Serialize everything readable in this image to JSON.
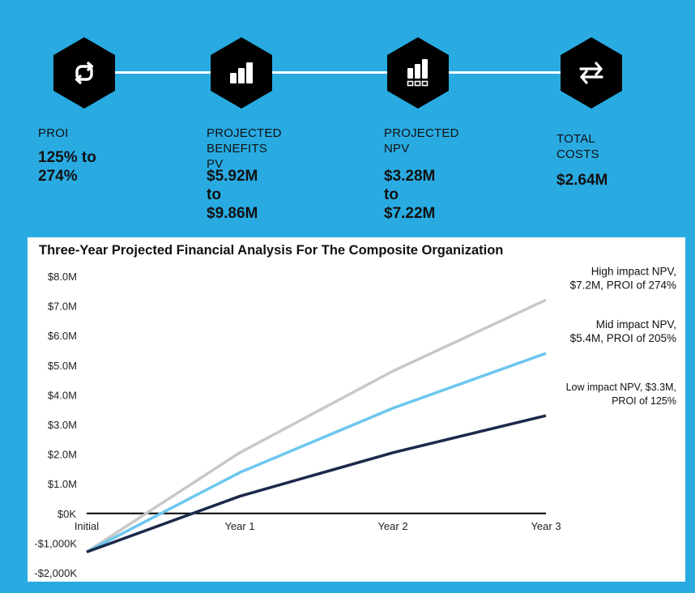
{
  "metrics": [
    {
      "label_lines": [
        "PROI"
      ],
      "value_lines": [
        "125% to",
        "274%"
      ],
      "icon": "refresh-icon"
    },
    {
      "label_lines": [
        "PROJECTED",
        "BENEFITS PV"
      ],
      "value_lines": [
        "$5.92M to",
        "$9.86M"
      ],
      "icon": "bar-chart-icon"
    },
    {
      "label_lines": [
        "PROJECTED",
        "NPV"
      ],
      "value_lines": [
        "$3.28M to",
        "$7.22M"
      ],
      "icon": "bar-chart-squares-icon"
    },
    {
      "label_lines": [
        "TOTAL",
        "COSTS"
      ],
      "value_lines": [
        "$2.64M"
      ],
      "icon": "swap-arrows-icon"
    }
  ],
  "colors": {
    "background": "#29abe2",
    "hexagon": "#000000",
    "high": "#c8c8c8",
    "mid": "#6cc6ee",
    "low": "#1b2a4a",
    "zero_line": "#000000"
  },
  "chart_data": {
    "type": "line",
    "title": "Three-Year Projected Financial Analysis For The Composite Organization",
    "x": [
      "Initial",
      "Year 1",
      "Year 2",
      "Year 3"
    ],
    "ylim": [
      -2000000,
      8000000
    ],
    "yticks": [
      {
        "value": 8000000,
        "label": "$8.0M"
      },
      {
        "value": 7000000,
        "label": "$7.0M"
      },
      {
        "value": 6000000,
        "label": "$6.0M"
      },
      {
        "value": 5000000,
        "label": "$5.0M"
      },
      {
        "value": 4000000,
        "label": "$4.0M"
      },
      {
        "value": 3000000,
        "label": "$3.0M"
      },
      {
        "value": 2000000,
        "label": "$2.0M"
      },
      {
        "value": 1000000,
        "label": "$1.0M"
      },
      {
        "value": 0,
        "label": "$0K"
      },
      {
        "value": -1000000,
        "label": "-$1,000K"
      },
      {
        "value": -2000000,
        "label": "-$2,000K"
      }
    ],
    "grid": false,
    "series": [
      {
        "key": "high",
        "values": [
          -1300000,
          2050000,
          4800000,
          7200000
        ],
        "label_lines": [
          "High impact NPV,",
          "$7.2M, PROI of 274%"
        ]
      },
      {
        "key": "mid",
        "values": [
          -1300000,
          1380000,
          3550000,
          5400000
        ],
        "label_lines": [
          "Mid impact NPV,",
          "$5.4M, PROI of 205%"
        ]
      },
      {
        "key": "low",
        "values": [
          -1300000,
          580000,
          2050000,
          3300000
        ],
        "label_lines": [
          "Low impact NPV, $3.3M,",
          "PROI of 125%"
        ]
      }
    ]
  }
}
